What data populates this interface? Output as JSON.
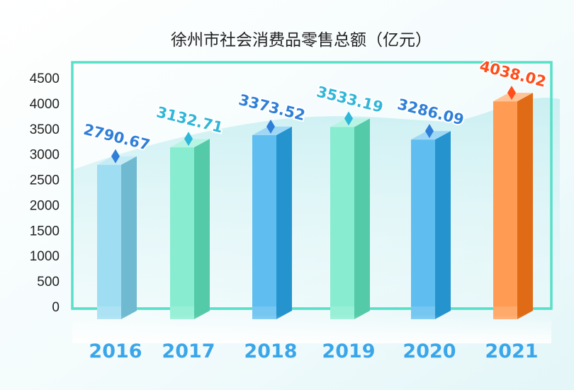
{
  "chart_data": {
    "type": "bar",
    "title": "徐州市社会消费品零售总额（亿元）",
    "categories": [
      "2016",
      "2017",
      "2018",
      "2019",
      "2020",
      "2021"
    ],
    "values": [
      2790.67,
      3132.71,
      3373.52,
      3533.19,
      3286.09,
      4038.02
    ],
    "value_labels": [
      "2790.67",
      "3132.71",
      "3373.52",
      "3533.19",
      "3286.09",
      "4038.02"
    ],
    "yticks": [
      "0",
      "500",
      "1000",
      "1500",
      "2000",
      "2500",
      "3000",
      "3500",
      "4000",
      "4500"
    ],
    "ylim": [
      0,
      4500
    ],
    "grid": false,
    "legend": "none",
    "colors": {
      "bars": [
        "#7fd3ee",
        "#5fe6c0",
        "#2aa8ea",
        "#5fe6c0",
        "#2aa8ea",
        "#ff7a1a"
      ],
      "year_labels": [
        "#3aa6ea",
        "#3aa6ea",
        "#3aa6ea",
        "#3aa6ea",
        "#3aa6ea",
        "#3aa6ea"
      ],
      "value_labels": [
        "#2f7fd8",
        "#2fb6d8",
        "#2f7fd8",
        "#2fb6d8",
        "#2f7fd8",
        "#ff4d1a"
      ],
      "frame": "#58e0c8",
      "axis_text": "#222222"
    }
  }
}
